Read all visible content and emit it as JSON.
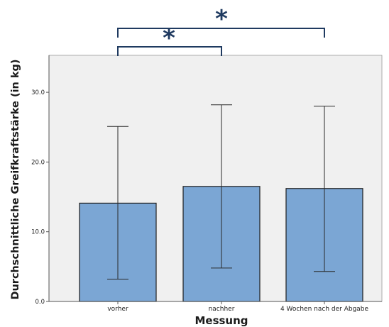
{
  "chart_data": {
    "type": "bar",
    "categories": [
      "vorher",
      "nachher",
      "4 Wochen nach der Abgabe"
    ],
    "values": [
      14.1,
      16.5,
      16.2
    ],
    "error_low": [
      3.2,
      4.8,
      4.3
    ],
    "error_high": [
      25.1,
      28.2,
      28.0
    ],
    "xlabel": "Messung",
    "ylabel": "Durchschnittliche Greifkraftstärke (in kg)",
    "ylim": [
      0,
      30
    ],
    "yticks": [
      "0.0",
      "10.0",
      "20.0",
      "30.0"
    ],
    "significance": [
      {
        "from": 0,
        "to": 1,
        "symbol": "*"
      },
      {
        "from": 0,
        "to": 2,
        "symbol": "*"
      }
    ],
    "grid": false,
    "colors": {
      "bar_fill": "#7ba6d4",
      "bar_stroke": "#1e1e1e",
      "plot_background": "#f0f0f0",
      "significance_color": "#1f3a60"
    }
  }
}
